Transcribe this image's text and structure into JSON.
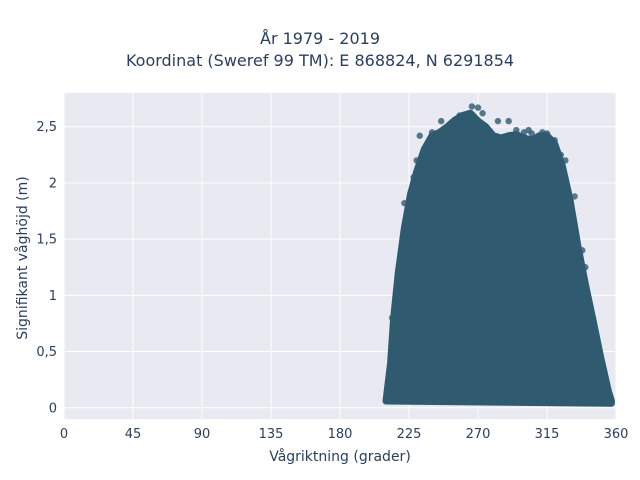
{
  "chart_data": {
    "type": "scatter",
    "title_line1": "År 1979 - 2019",
    "title_line2": "Koordinat (Sweref 99 TM): E 868824, N 6291854",
    "xlabel": "Vågriktning (grader)",
    "ylabel": "Signifikant våghöjd (m)",
    "xlim": [
      0,
      360
    ],
    "ylim": [
      -0.1,
      2.8
    ],
    "xticks": [
      0,
      45,
      90,
      135,
      180,
      225,
      270,
      315,
      360
    ],
    "xtick_labels": [
      "0",
      "45",
      "90",
      "135",
      "180",
      "225",
      "270",
      "315",
      "360"
    ],
    "yticks": [
      0,
      0.5,
      1,
      1.5,
      2,
      2.5
    ],
    "ytick_labels": [
      "0",
      "0,5",
      "1",
      "1,5",
      "2",
      "2,5"
    ],
    "grid": true,
    "colors": {
      "marker": "#2f5a70",
      "plot_bg": "#e9e9f1",
      "grid": "#ffffff",
      "text": "#2a3f5f"
    },
    "envelope_upper": [
      [
        210,
        0.06
      ],
      [
        213,
        0.4
      ],
      [
        215,
        0.8
      ],
      [
        218,
        1.2
      ],
      [
        222,
        1.6
      ],
      [
        226,
        1.9
      ],
      [
        230,
        2.1
      ],
      [
        235,
        2.3
      ],
      [
        240,
        2.42
      ],
      [
        245,
        2.45
      ],
      [
        250,
        2.5
      ],
      [
        255,
        2.56
      ],
      [
        260,
        2.6
      ],
      [
        265,
        2.62
      ],
      [
        270,
        2.55
      ],
      [
        275,
        2.5
      ],
      [
        280,
        2.42
      ],
      [
        285,
        2.4
      ],
      [
        290,
        2.42
      ],
      [
        295,
        2.43
      ],
      [
        300,
        2.4
      ],
      [
        305,
        2.38
      ],
      [
        310,
        2.42
      ],
      [
        315,
        2.42
      ],
      [
        320,
        2.35
      ],
      [
        325,
        2.15
      ],
      [
        330,
        1.85
      ],
      [
        335,
        1.45
      ],
      [
        340,
        1.1
      ],
      [
        345,
        0.78
      ],
      [
        350,
        0.45
      ],
      [
        355,
        0.15
      ],
      [
        357,
        0.06
      ]
    ],
    "outliers": [
      [
        232,
        2.42
      ],
      [
        240,
        2.45
      ],
      [
        246,
        2.55
      ],
      [
        258,
        2.6
      ],
      [
        262,
        2.6
      ],
      [
        266,
        2.68
      ],
      [
        270,
        2.67
      ],
      [
        273,
        2.62
      ],
      [
        283,
        2.55
      ],
      [
        290,
        2.55
      ],
      [
        295,
        2.47
      ],
      [
        303,
        2.47
      ],
      [
        312,
        2.45
      ],
      [
        320,
        2.38
      ],
      [
        327,
        2.2
      ],
      [
        333,
        1.88
      ],
      [
        332,
        1.6
      ],
      [
        340,
        1.25
      ],
      [
        345,
        0.8
      ],
      [
        348,
        0.5
      ],
      [
        352,
        0.3
      ],
      [
        356,
        0.1
      ],
      [
        214,
        0.8
      ],
      [
        218,
        1.22
      ],
      [
        222,
        1.82
      ],
      [
        228,
        2.05
      ],
      [
        236,
        2.3
      ],
      [
        252,
        2.52
      ],
      [
        300,
        2.45
      ],
      [
        305,
        2.44
      ],
      [
        315,
        2.44
      ],
      [
        324,
        2.25
      ],
      [
        338,
        1.4
      ],
      [
        230,
        2.2
      ]
    ]
  }
}
